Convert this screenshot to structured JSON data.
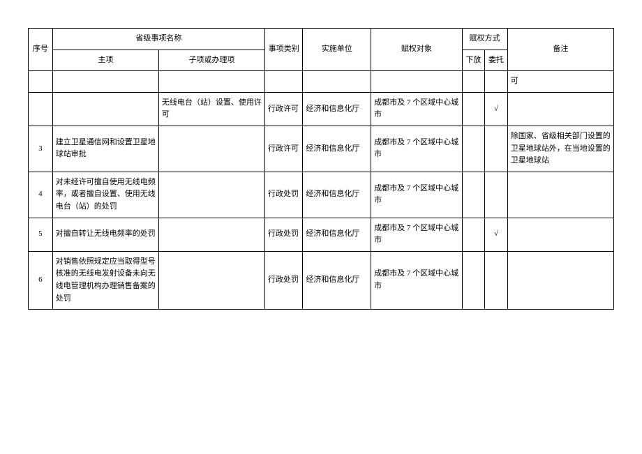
{
  "table": {
    "headers": {
      "seq": "序号",
      "province_item": "省级事项名称",
      "main_item": "主项",
      "sub_item": "子项或办理项",
      "category": "事项类别",
      "org": "实施单位",
      "object": "赋权对象",
      "method": "赋权方式",
      "xiafang": "下放",
      "weituo": "委托",
      "note": "备注"
    },
    "rows": [
      {
        "seq": "",
        "main": "",
        "sub": "",
        "cat": "",
        "org": "",
        "obj": "",
        "xf": "",
        "wt": "",
        "note": "可"
      },
      {
        "seq": "",
        "main": "",
        "sub": "无线电台（站）设置、使用许可",
        "cat": "行政许可",
        "org": "经济和信息化厅",
        "obj": "成都市及 7 个区域中心城市",
        "xf": "",
        "wt": "√",
        "note": ""
      },
      {
        "seq": "3",
        "main": "建立卫星通信网和设置卫星地球站审批",
        "sub": "",
        "cat": "行政许可",
        "org": "经济和信息化厅",
        "obj": "成都市及 7 个区域中心城市",
        "xf": "",
        "wt": "",
        "note": "除国家、省级相关部门设置的卫星地球站外，在当地设置的卫星地球站"
      },
      {
        "seq": "4",
        "main": "对未经许可擅自使用无线电频率，或者擅自设置、使用无线电台（站）的处罚",
        "sub": "",
        "cat": "行政处罚",
        "org": "经济和信息化厅",
        "obj": "成都市及 7 个区域中心城市",
        "xf": "",
        "wt": "",
        "note": ""
      },
      {
        "seq": "5",
        "main": "对擅自转让无线电频率的处罚",
        "sub": "",
        "cat": "行政处罚",
        "org": "经济和信息化厅",
        "obj": "成都市及 7 个区域中心城市",
        "xf": "",
        "wt": "√",
        "note": ""
      },
      {
        "seq": "6",
        "main": "对销售依照规定应当取得型号核准的无线电发射设备未向无线电管理机构办理销售备案的处罚",
        "sub": "",
        "cat": "行政处罚",
        "org": "经济和信息化厅",
        "obj": "成都市及 7 个区域中心城市",
        "xf": "",
        "wt": "",
        "note": ""
      }
    ]
  }
}
